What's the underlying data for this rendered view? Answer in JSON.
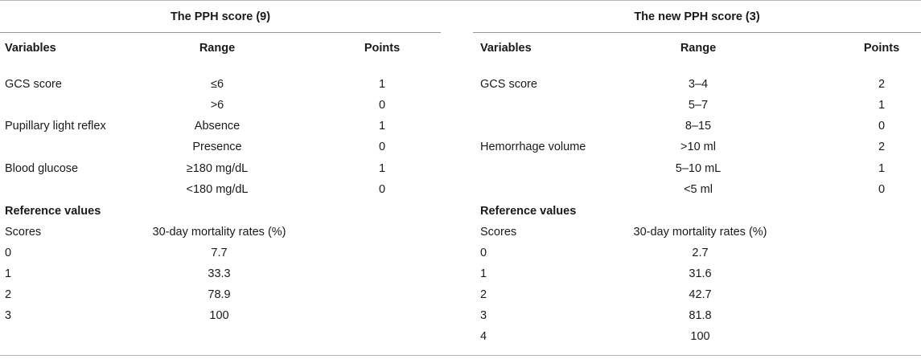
{
  "left": {
    "title": "The PPH score (9)",
    "headers": {
      "variables": "Variables",
      "range": "Range",
      "points": "Points"
    },
    "rows": [
      {
        "variable": "GCS score",
        "range": "≤6",
        "points": "1"
      },
      {
        "variable": "",
        "range": ">6",
        "points": "0"
      },
      {
        "variable": "Pupillary light reflex",
        "range": "Absence",
        "points": "1"
      },
      {
        "variable": "",
        "range": "Presence",
        "points": "0"
      },
      {
        "variable": "Blood glucose",
        "range": "≥180 mg/dL",
        "points": "1"
      },
      {
        "variable": "",
        "range": "<180 mg/dL",
        "points": "0"
      }
    ],
    "reference_title": "Reference values",
    "reference_headers": {
      "scores": "Scores",
      "mortality": "30-day mortality rates (%)"
    },
    "reference_rows": [
      {
        "score": "0",
        "mortality": "7.7"
      },
      {
        "score": "1",
        "mortality": "33.3"
      },
      {
        "score": "2",
        "mortality": "78.9"
      },
      {
        "score": "3",
        "mortality": "100"
      }
    ]
  },
  "right": {
    "title": "The new PPH score (3)",
    "headers": {
      "variables": "Variables",
      "range": "Range",
      "points": "Points"
    },
    "rows": [
      {
        "variable": "GCS score",
        "range": "3–4",
        "points": "2"
      },
      {
        "variable": "",
        "range": "5–7",
        "points": "1"
      },
      {
        "variable": "",
        "range": "8–15",
        "points": "0"
      },
      {
        "variable": "Hemorrhage volume",
        "range": ">10 ml",
        "points": "2"
      },
      {
        "variable": "",
        "range": "5–10 mL",
        "points": "1"
      },
      {
        "variable": "",
        "range": "<5 ml",
        "points": "0"
      }
    ],
    "reference_title": "Reference values",
    "reference_headers": {
      "scores": "Scores",
      "mortality": "30-day mortality rates (%)"
    },
    "reference_rows": [
      {
        "score": "0",
        "mortality": "2.7"
      },
      {
        "score": "1",
        "mortality": "31.6"
      },
      {
        "score": "2",
        "mortality": "42.7"
      },
      {
        "score": "3",
        "mortality": "81.8"
      },
      {
        "score": "4",
        "mortality": "100"
      }
    ]
  }
}
